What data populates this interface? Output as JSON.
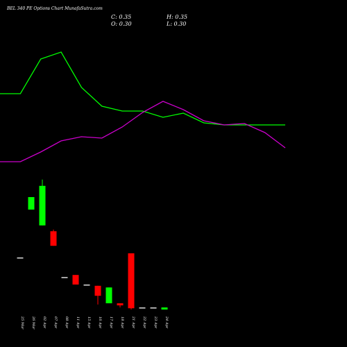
{
  "chart_data": [
    {
      "type": "line",
      "ylim": [
        0,
        250
      ],
      "series": [
        {
          "color": "#00ff00",
          "values": [
            115,
            115,
            165,
            175,
            124,
            97,
            90,
            90,
            81,
            87,
            73,
            70,
            70,
            70,
            70
          ]
        },
        {
          "color": "#cc00cc",
          "values": [
            17,
            17,
            31,
            47,
            53,
            51,
            67,
            88,
            104,
            92,
            76,
            70,
            72,
            59,
            37
          ]
        }
      ]
    },
    {
      "type": "candlestick",
      "title": "BEL 340 PE Options Chart MunafaSutra.com",
      "close_label": "C: 0.35",
      "open_label": "O: 0.30",
      "high_label": "H: 0.35",
      "low_label": "L: 0.30",
      "ylim": [
        0.3,
        3.7
      ],
      "up_color": "#00ff00",
      "down_color": "#ff0000",
      "categories": [
        "25 Mar",
        "26 Mar",
        "02 Apr",
        "07 Apr",
        "08 Apr",
        "11 Apr",
        "15 Apr",
        "16 Apr",
        "17 Apr",
        "18 Apr",
        "21 Apr",
        "22 Apr",
        "23 Apr",
        "24 Apr"
      ],
      "open": [
        1.55,
        2.7,
        2.32,
        2.18,
        1.08,
        1.13,
        0.9,
        0.87,
        0.45,
        0.45,
        1.65,
        0.35,
        0.35,
        0.3
      ],
      "close": [
        1.55,
        3.0,
        3.27,
        1.83,
        1.08,
        0.9,
        0.9,
        0.63,
        0.83,
        0.4,
        0.33,
        0.35,
        0.35,
        0.35
      ],
      "high": [
        1.55,
        3.0,
        3.42,
        2.22,
        1.08,
        1.13,
        0.9,
        0.87,
        0.83,
        0.45,
        1.65,
        0.35,
        0.35,
        0.35
      ],
      "low": [
        1.55,
        2.7,
        2.32,
        1.83,
        1.08,
        0.9,
        0.9,
        0.42,
        0.45,
        0.35,
        0.3,
        0.35,
        0.35,
        0.3
      ]
    }
  ]
}
